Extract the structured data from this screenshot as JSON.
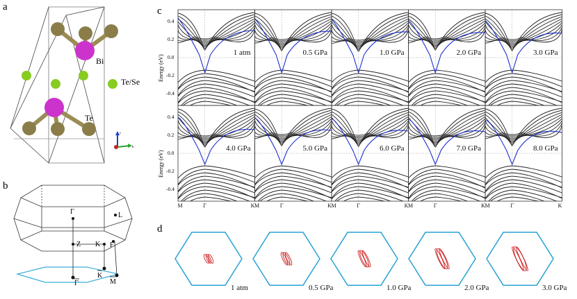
{
  "panels": {
    "a": {
      "letter": "a",
      "atoms": {
        "bi": "Bi",
        "tese": "Te/Se",
        "te": "Te"
      },
      "axes": {
        "c": "c",
        "a": "a",
        "b": "b"
      },
      "colors": {
        "bi": "#cc33cc",
        "tese": "#88cc22",
        "te": "#8b7d4a",
        "bond_bi": "#b040b0",
        "bond_te": "#8b7d4a"
      }
    },
    "b": {
      "letter": "b",
      "bz_points": {
        "gamma": "Γ",
        "L": "L",
        "Z": "Z",
        "K": "K",
        "F": "F"
      },
      "surface_points": {
        "gamma_bar": "Γ",
        "K_bar": "K",
        "M_bar": "M"
      },
      "surface_color": "#3aaed8"
    },
    "c": {
      "letter": "c",
      "ylabel": "Energy (eV)",
      "yticks": [
        "0.4",
        "0.2",
        "0.0",
        "-0.2",
        "-0.4"
      ],
      "kpath": [
        "M",
        "Γ",
        "K"
      ],
      "pressures_top": [
        "1 atm",
        "0.5 GPa",
        "1.0 GPa",
        "2.0 GPa",
        "3.0 GPa"
      ],
      "pressures_bottom": [
        "4.0 GPa",
        "5.0 GPa",
        "6.0 GPa",
        "7.0 GPa",
        "8.0 GPa"
      ],
      "band_color": "#222222",
      "surface_band_color": "#1a2fd0"
    },
    "d": {
      "letter": "d",
      "pressures": [
        "1 atm",
        "0.5 GPa",
        "1.0 GPa",
        "2.0 GPa",
        "3.0 GPa"
      ],
      "hex_color": "#2aa3d6",
      "fs_color": "#cc2222"
    }
  }
}
